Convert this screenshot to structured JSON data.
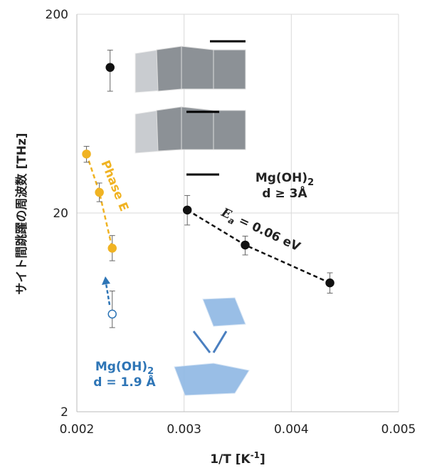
{
  "chart_data": {
    "type": "scatter",
    "x_label": {
      "text": "1/T [K",
      "superscript": "-1",
      "end": "]"
    },
    "y_label": "サイト間跳躍の周波数 [THz]",
    "xlim": [
      0.002,
      0.005
    ],
    "xticks": [
      0.002,
      0.003,
      0.004,
      0.005
    ],
    "ylim": [
      2,
      200
    ],
    "yticks": [
      2,
      20,
      200
    ],
    "log_y": true,
    "grid": true,
    "series": [
      {
        "color": "#111111",
        "marker": "filled",
        "fit_line": false,
        "x": [
          0.00231
        ],
        "values": [
          108
        ],
        "lower": [
          82
        ],
        "upper": [
          132
        ]
      },
      {
        "color": "#111111",
        "marker": "filled",
        "fit_line": true,
        "x": [
          0.00303,
          0.00357,
          0.00436
        ],
        "values": [
          20.7,
          13.8,
          8.9
        ],
        "lower": [
          17.4,
          12.3,
          7.9
        ],
        "upper": [
          24.5,
          15.3,
          10.0
        ]
      },
      {
        "color": "#f0b323",
        "marker": "filled",
        "fit_line": true,
        "x": [
          0.00209,
          0.00221,
          0.00233
        ],
        "values": [
          39.6,
          25.4,
          13.3
        ],
        "lower": [
          36,
          22.8,
          11.5
        ],
        "upper": [
          43.3,
          28.3,
          15.4
        ]
      },
      {
        "color": "#2e75b6",
        "marker": "open",
        "fit_line": false,
        "x": [
          0.00233
        ],
        "values": [
          6.2
        ],
        "lower": [
          5.3
        ],
        "upper": [
          8.1
        ]
      }
    ],
    "annotations": {
      "phase_e": "Phase E",
      "ea": {
        "symbol": "E",
        "subscript": "a",
        "text": " = 0.06 eV"
      },
      "mg_thick": {
        "text": "Mg(OH)",
        "subscript": "2",
        "line2": "d ≥ 3Å"
      },
      "mg_thin": {
        "text": "Mg(OH)",
        "subscript": "2",
        "line2": "d = 1.9 Å"
      }
    }
  }
}
